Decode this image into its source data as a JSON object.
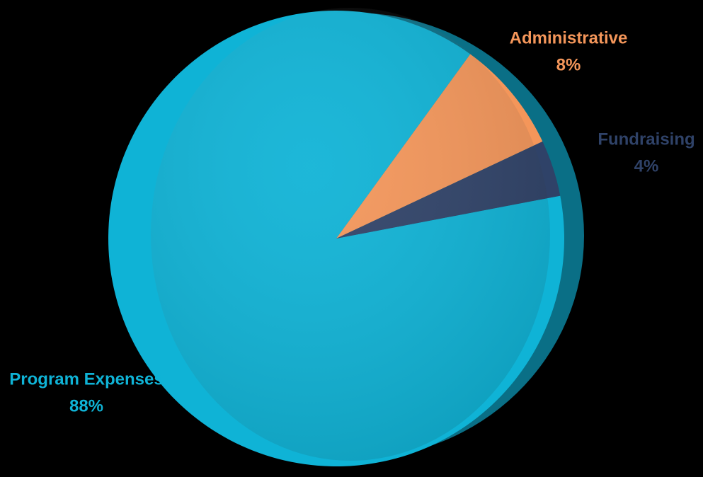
{
  "chart_data": {
    "type": "pie",
    "categories": [
      "Program Expenses",
      "Administrative",
      "Fundraising"
    ],
    "values": [
      88,
      8,
      4
    ],
    "value_labels": [
      "88%",
      "8%",
      "4%"
    ],
    "colors": [
      "#0fb3d6",
      "#f4965a",
      "#2f4268"
    ]
  }
}
